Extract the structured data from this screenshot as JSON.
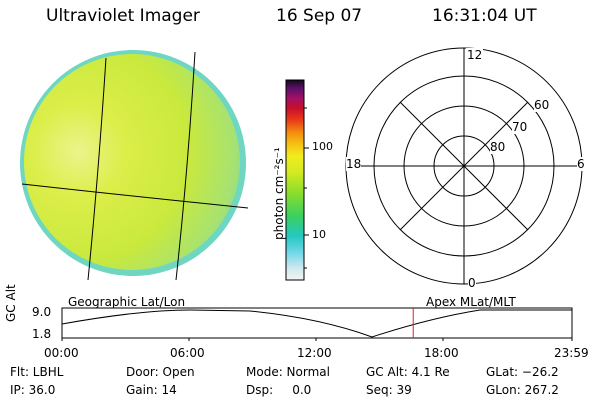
{
  "header": {
    "title": "Ultraviolet Imager",
    "date": "16 Sep 07",
    "time": "16:31:04 UT"
  },
  "colorbar": {
    "unit": "photon cm⁻²s⁻¹",
    "ticks": [
      "100",
      "10"
    ]
  },
  "panels": {
    "left_label": "Geographic Lat/Lon",
    "right_label": "Apex MLat/MLT"
  },
  "polar": {
    "mlt_labels": {
      "top": "12",
      "left": "18",
      "right": "6",
      "bottom": "0"
    },
    "lat_labels": [
      "60",
      "70",
      "80"
    ]
  },
  "altitude_plot": {
    "ylabel": "GC Alt",
    "yticks": [
      "9.0",
      "1.8"
    ],
    "xticks": [
      "00:00",
      "06:00",
      "12:00",
      "18:00",
      "23:59"
    ],
    "marker_time": "16:31",
    "marker_color": "#e0202a"
  },
  "info": {
    "flt": "Flt: LBHL",
    "ip": "IP: 36.0",
    "door": "Door: Open",
    "gain": "Gain: 14",
    "mode": "Mode: Normal",
    "dsp": "Dsp:     0.0",
    "gc_alt": "GC Alt: 4.1 Re",
    "seq": "Seq: 39",
    "glat": "GLat: −26.2",
    "glon": "GLon: 267.2"
  }
}
